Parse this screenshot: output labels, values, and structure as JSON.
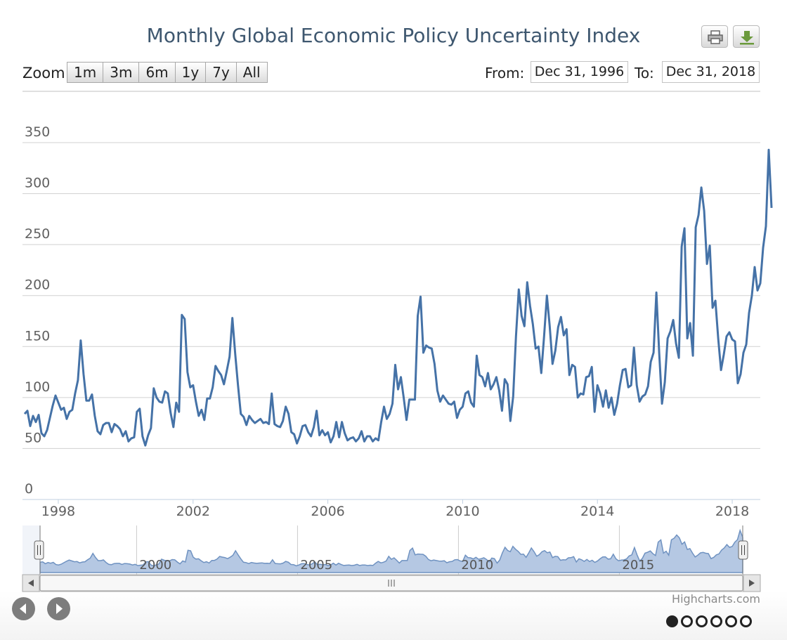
{
  "chart_data": {
    "type": "line",
    "title": "Monthly Global Economic Policy Uncertainty Index",
    "ylim": [
      0,
      350
    ],
    "y_ticks": [
      0,
      50,
      100,
      150,
      200,
      250,
      300,
      350
    ],
    "x_ticks": [
      "1998",
      "2002",
      "2006",
      "2010",
      "2014",
      "2018"
    ],
    "navigator_ticks": [
      "2000",
      "2005",
      "2010",
      "2015"
    ],
    "x_start": "1997-01",
    "x_end": "2018-11",
    "grid": true,
    "legend": "none",
    "line_color": "#4572a7",
    "series": [
      {
        "values": [
          84,
          87,
          72,
          82,
          76,
          83,
          65,
          62,
          68,
          80,
          92,
          102,
          95,
          88,
          90,
          79,
          86,
          88,
          104,
          117,
          156,
          123,
          97,
          97,
          103,
          82,
          67,
          64,
          73,
          75,
          75,
          66,
          74,
          72,
          69,
          62,
          67,
          57,
          60,
          61,
          86,
          89,
          62,
          53,
          63,
          70,
          109,
          100,
          96,
          95,
          106,
          104,
          85,
          71,
          95,
          86,
          181,
          177,
          125,
          110,
          112,
          96,
          82,
          88,
          78,
          99,
          99,
          110,
          131,
          126,
          122,
          113,
          126,
          140,
          178,
          143,
          112,
          84,
          81,
          73,
          82,
          78,
          75,
          77,
          79,
          75,
          76,
          74,
          104,
          74,
          72,
          71,
          77,
          91,
          84,
          66,
          64,
          55,
          62,
          72,
          73,
          66,
          62,
          71,
          87,
          63,
          68,
          63,
          66,
          56,
          62,
          76,
          61,
          76,
          65,
          58,
          60,
          61,
          57,
          60,
          67,
          57,
          62,
          62,
          57,
          60,
          58,
          76,
          91,
          79,
          84,
          94,
          132,
          108,
          120,
          100,
          78,
          98,
          98,
          98,
          180,
          199,
          144,
          151,
          149,
          148,
          133,
          107,
          96,
          102,
          98,
          94,
          93,
          96,
          80,
          88,
          91,
          104,
          106,
          95,
          91,
          141,
          122,
          120,
          111,
          124,
          108,
          113,
          120,
          107,
          87,
          118,
          113,
          77,
          101,
          160,
          206,
          180,
          170,
          213,
          190,
          172,
          148,
          150,
          124,
          160,
          200,
          170,
          133,
          146,
          169,
          179,
          161,
          167,
          122,
          132,
          130,
          100,
          104,
          103,
          120,
          121,
          130,
          86,
          112,
          104,
          91,
          107,
          90,
          100,
          83,
          94,
          112,
          127,
          128,
          110,
          112,
          149,
          112,
          96,
          101,
          103,
          111,
          135,
          144,
          203,
          144,
          94,
          115,
          158,
          165,
          176,
          153,
          139,
          248,
          266,
          158,
          173,
          141,
          267,
          279,
          306,
          283,
          231,
          249,
          188,
          195,
          158,
          127,
          142,
          160,
          164,
          157,
          155,
          114,
          123,
          144,
          152,
          183,
          200,
          228,
          205,
          212,
          247,
          268,
          343,
          286
        ]
      }
    ],
    "navigator_values": [
      84,
      87,
      72,
      82,
      76,
      83,
      65,
      62,
      68,
      80,
      92,
      102,
      95,
      88,
      90,
      79,
      86,
      88,
      104,
      117,
      156,
      123,
      97,
      97,
      103,
      82,
      67,
      64,
      73,
      75,
      75,
      66,
      74,
      72,
      69,
      62,
      67,
      57,
      60,
      61,
      86,
      89,
      62,
      53,
      63,
      70,
      109,
      100,
      96,
      95,
      106,
      104,
      85,
      71,
      95,
      86,
      181,
      177,
      125,
      110,
      112,
      96,
      82,
      88,
      78,
      99,
      99,
      110,
      131,
      126,
      122,
      113,
      126,
      140,
      178,
      143,
      112,
      84,
      81,
      73,
      82,
      78,
      75,
      77,
      79,
      75,
      76,
      74,
      104,
      74,
      72,
      71,
      77,
      91,
      84,
      66,
      64,
      55,
      62,
      72,
      73,
      66,
      62,
      71,
      87,
      63,
      68,
      63,
      66,
      56,
      62,
      76,
      61,
      76,
      65,
      58,
      60,
      61,
      57,
      60,
      67,
      57,
      62,
      62,
      57,
      60,
      58,
      76,
      91,
      79,
      84,
      94,
      132,
      108,
      120,
      100,
      78,
      98,
      98,
      98,
      180,
      199,
      144,
      151,
      149,
      148,
      133,
      107,
      96,
      102,
      98,
      94,
      93,
      96,
      80,
      88,
      91,
      104,
      106,
      95,
      91,
      141,
      122,
      120,
      111,
      124,
      108,
      113,
      120,
      107,
      87,
      118,
      113,
      77,
      101,
      160,
      206,
      180,
      170,
      213,
      190,
      172,
      148,
      150,
      124,
      160,
      200,
      170,
      133,
      146,
      169,
      179,
      161,
      167,
      122,
      132,
      130,
      100,
      104,
      103,
      120,
      121,
      130,
      86,
      112,
      104,
      91,
      107,
      90,
      100,
      83,
      94,
      112,
      127,
      128,
      110,
      112,
      149,
      112,
      96,
      101,
      103,
      111,
      135,
      144,
      203,
      144,
      94,
      115,
      158,
      165,
      176,
      153,
      139,
      248,
      266,
      158,
      173,
      141,
      267,
      279,
      306,
      283,
      231,
      249,
      188,
      195,
      158,
      127,
      142,
      160,
      164,
      157,
      155,
      114,
      123,
      144,
      152,
      183,
      200,
      228,
      205,
      212,
      247,
      268,
      343,
      286
    ]
  },
  "toolbar": {
    "zoom_label": "Zoom",
    "zoom_buttons": [
      "1m",
      "3m",
      "6m",
      "1y",
      "7y",
      "All"
    ],
    "from_label": "From:",
    "from_value": "Dec 31, 1996",
    "to_label": "To:",
    "to_value": "Dec 31, 2018"
  },
  "export": {
    "print_icon": "printer-icon",
    "download_icon": "download-icon"
  },
  "credits": "Highcharts.com",
  "pager": {
    "count": 6,
    "active": 0
  }
}
